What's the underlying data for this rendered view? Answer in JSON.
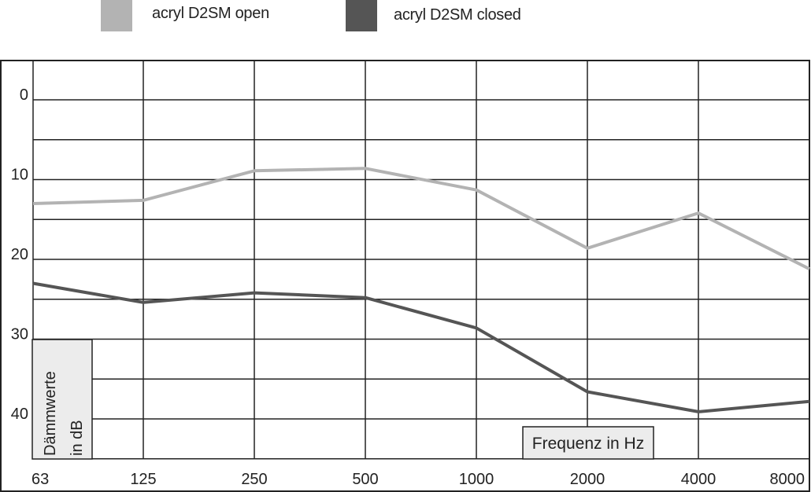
{
  "chart_data": {
    "type": "line",
    "x_categories": [
      "63",
      "125",
      "250",
      "500",
      "1000",
      "2000",
      "4000",
      "8000"
    ],
    "y_ticks": [
      "0",
      "10",
      "20",
      "30",
      "40"
    ],
    "ylim": [
      -5,
      45
    ],
    "y_inverted": true,
    "grid": true,
    "legend_position": "top-left",
    "ylabel_line1": "Dämmwerte",
    "ylabel_line2": "in dB",
    "xlabel": "Frequenz in Hz",
    "series": [
      {
        "name": "acryl D2SM open",
        "color": "#b3b3b3",
        "values": [
          13.0,
          12.6,
          8.9,
          8.6,
          11.3,
          18.6,
          14.2,
          21.2
        ]
      },
      {
        "name": "acryl D2SM closed",
        "color": "#555555",
        "values": [
          23.0,
          25.4,
          24.2,
          24.8,
          28.6,
          36.6,
          39.1,
          37.8
        ]
      }
    ]
  }
}
